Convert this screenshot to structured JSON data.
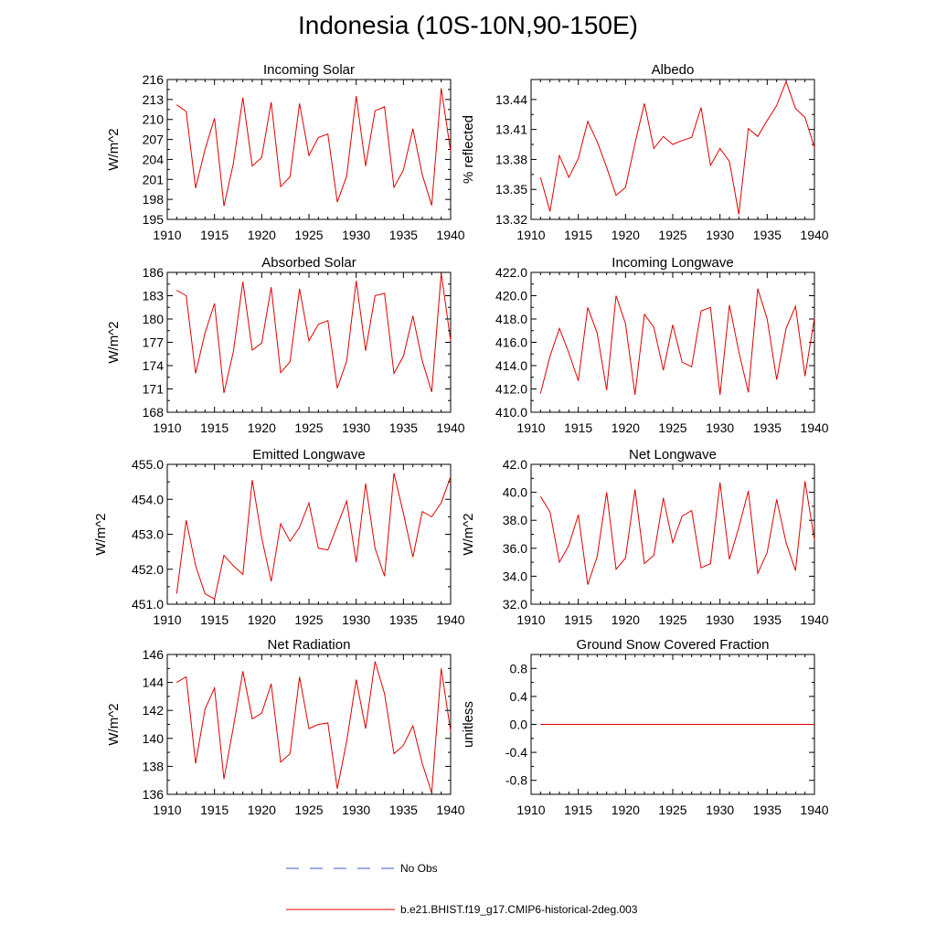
{
  "title": "Indonesia (10S-10N,90-150E)",
  "x": [
    1911,
    1912,
    1913,
    1914,
    1915,
    1916,
    1917,
    1918,
    1919,
    1920,
    1921,
    1922,
    1923,
    1924,
    1925,
    1926,
    1927,
    1928,
    1929,
    1930,
    1931,
    1932,
    1933,
    1934,
    1935,
    1936,
    1937,
    1938,
    1939,
    1940
  ],
  "chart_data": [
    {
      "type": "line",
      "title": "Incoming Solar",
      "ylabel": "W/m^2",
      "xlim": [
        1910,
        1940
      ],
      "ylim": [
        195,
        216
      ],
      "xticks": [
        "1910",
        "1915",
        "1920",
        "1925",
        "1930",
        "1935",
        "1940"
      ],
      "yticks": [
        "195",
        "198",
        "201",
        "204",
        "207",
        "210",
        "213",
        "216"
      ],
      "grid": false,
      "series": [
        {
          "values": [
            212.2,
            211.2,
            199.7,
            205.5,
            210.2,
            197.0,
            203.4,
            213.3,
            203.0,
            204.3,
            212.6,
            199.9,
            201.4,
            212.4,
            204.6,
            207.3,
            207.8,
            197.6,
            201.5,
            213.5,
            203.0,
            211.3,
            211.9,
            199.8,
            202.4,
            208.6,
            201.7,
            197.1,
            214.7,
            205.2
          ]
        }
      ]
    },
    {
      "type": "line",
      "title": "Albedo",
      "ylabel": "% reflected",
      "xlim": [
        1910,
        1940
      ],
      "ylim": [
        13.32,
        13.46
      ],
      "xticks": [
        "1910",
        "1915",
        "1920",
        "1925",
        "1930",
        "1935",
        "1940"
      ],
      "yticks": [
        "13.32",
        "13.35",
        "13.38",
        "13.41",
        "13.44"
      ],
      "grid": false,
      "series": [
        {
          "values": [
            13.362,
            13.328,
            13.384,
            13.362,
            13.381,
            13.418,
            13.398,
            13.372,
            13.344,
            13.352,
            13.396,
            13.436,
            13.391,
            13.403,
            13.395,
            13.399,
            13.402,
            13.432,
            13.374,
            13.391,
            13.378,
            13.325,
            13.411,
            13.403,
            13.419,
            13.434,
            13.458,
            13.431,
            13.422,
            13.392
          ]
        }
      ]
    },
    {
      "type": "line",
      "title": "Absorbed Solar",
      "ylabel": "W/m^2",
      "xlim": [
        1910,
        1940
      ],
      "ylim": [
        168,
        186
      ],
      "xticks": [
        "1910",
        "1915",
        "1920",
        "1925",
        "1930",
        "1935",
        "1940"
      ],
      "yticks": [
        "168",
        "171",
        "174",
        "177",
        "180",
        "183",
        "186"
      ],
      "grid": false,
      "series": [
        {
          "values": [
            183.7,
            183.0,
            173.0,
            178.2,
            182.0,
            170.5,
            175.8,
            184.8,
            176.0,
            176.9,
            184.1,
            173.1,
            174.5,
            183.9,
            177.2,
            179.3,
            179.8,
            171.1,
            174.6,
            184.9,
            175.9,
            183.0,
            183.3,
            173.0,
            175.2,
            180.4,
            174.6,
            170.6,
            185.9,
            177.2
          ]
        }
      ]
    },
    {
      "type": "line",
      "title": "Incoming Longwave",
      "ylabel": "",
      "xlim": [
        1910,
        1940
      ],
      "ylim": [
        410.0,
        422.0
      ],
      "xticks": [
        "1910",
        "1915",
        "1920",
        "1925",
        "1930",
        "1935",
        "1940"
      ],
      "yticks": [
        "410.0",
        "412.0",
        "414.0",
        "416.0",
        "418.0",
        "420.0",
        "422.0"
      ],
      "grid": false,
      "series": [
        {
          "values": [
            411.6,
            414.8,
            417.2,
            415.1,
            412.7,
            419.0,
            416.8,
            411.9,
            420.0,
            417.6,
            411.5,
            418.4,
            417.3,
            413.6,
            417.5,
            414.3,
            413.9,
            418.7,
            419.0,
            411.5,
            419.2,
            415.2,
            411.7,
            420.6,
            418.0,
            412.8,
            417.2,
            419.1,
            413.1,
            418.1
          ]
        }
      ]
    },
    {
      "type": "line",
      "title": "Emitted Longwave",
      "ylabel": "W/m^2",
      "xlim": [
        1910,
        1940
      ],
      "ylim": [
        451.0,
        455.0
      ],
      "xticks": [
        "1910",
        "1915",
        "1920",
        "1925",
        "1930",
        "1935",
        "1940"
      ],
      "yticks": [
        "451.0",
        "452.0",
        "453.0",
        "454.0",
        "455.0"
      ],
      "grid": false,
      "series": [
        {
          "values": [
            451.3,
            453.4,
            452.1,
            451.3,
            451.15,
            452.4,
            452.1,
            451.85,
            454.55,
            452.9,
            451.65,
            453.3,
            452.8,
            453.2,
            453.9,
            452.6,
            452.55,
            453.25,
            453.95,
            452.2,
            454.45,
            452.6,
            451.8,
            454.75,
            453.6,
            452.35,
            453.65,
            453.5,
            453.9,
            454.65
          ]
        }
      ]
    },
    {
      "type": "line",
      "title": "Net Longwave",
      "ylabel": "W/m^2",
      "xlim": [
        1910,
        1940
      ],
      "ylim": [
        32.0,
        42.0
      ],
      "xticks": [
        "1910",
        "1915",
        "1920",
        "1925",
        "1930",
        "1935",
        "1940"
      ],
      "yticks": [
        "32.0",
        "34.0",
        "36.0",
        "38.0",
        "40.0",
        "42.0"
      ],
      "grid": false,
      "series": [
        {
          "values": [
            39.7,
            38.6,
            35.0,
            36.2,
            38.4,
            33.4,
            35.4,
            40.0,
            34.5,
            35.3,
            40.2,
            34.9,
            35.5,
            39.6,
            36.4,
            38.3,
            38.7,
            34.6,
            34.9,
            40.7,
            35.2,
            37.5,
            40.1,
            34.2,
            35.7,
            39.5,
            36.4,
            34.4,
            40.8,
            36.6
          ]
        }
      ]
    },
    {
      "type": "line",
      "title": "Net Radiation",
      "ylabel": "W/m^2",
      "xlim": [
        1910,
        1940
      ],
      "ylim": [
        136,
        146
      ],
      "xticks": [
        "1910",
        "1915",
        "1920",
        "1925",
        "1930",
        "1935",
        "1940"
      ],
      "yticks": [
        "136",
        "138",
        "140",
        "142",
        "144",
        "146"
      ],
      "grid": false,
      "series": [
        {
          "values": [
            144.0,
            144.4,
            138.2,
            142.1,
            143.6,
            137.1,
            140.8,
            144.8,
            141.4,
            141.8,
            143.9,
            138.3,
            138.9,
            144.4,
            140.7,
            141.0,
            141.1,
            136.4,
            139.8,
            144.2,
            140.7,
            145.5,
            143.2,
            138.9,
            139.5,
            140.9,
            138.2,
            136.1,
            145.0,
            140.5
          ]
        }
      ]
    },
    {
      "type": "line",
      "title": "Ground Snow Covered Fraction",
      "ylabel": "unitless",
      "xlim": [
        1910,
        1940
      ],
      "ylim": [
        -1.0,
        1.0
      ],
      "xticks": [
        "1910",
        "1915",
        "1920",
        "1925",
        "1930",
        "1935",
        "1940"
      ],
      "yticks": [
        "-0.8",
        "-0.4",
        "0.0",
        "0.4",
        "0.8"
      ],
      "yticks_values": [
        -0.8,
        -0.4,
        0.0,
        0.4,
        0.8
      ],
      "grid": false,
      "series": [
        {
          "values": [
            0,
            0,
            0,
            0,
            0,
            0,
            0,
            0,
            0,
            0,
            0,
            0,
            0,
            0,
            0,
            0,
            0,
            0,
            0,
            0,
            0,
            0,
            0,
            0,
            0,
            0,
            0,
            0,
            0,
            0
          ]
        }
      ]
    }
  ],
  "legend": {
    "items": [
      {
        "label": "No Obs",
        "color": "#4a55c8",
        "style": "dashed"
      },
      {
        "label": "b.e21.BHIST.f19_g17.CMIP6-historical-2deg.003",
        "color": "#e00000",
        "style": "solid"
      }
    ]
  },
  "colors": {
    "model_line": "#e00000",
    "obs_line": "#4a55c8"
  }
}
